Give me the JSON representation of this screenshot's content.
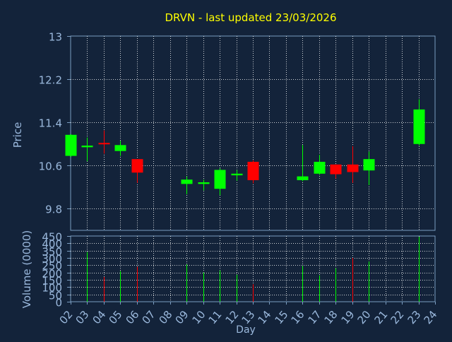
{
  "chart_data": [
    {
      "type": "candlestick",
      "title": "DRVN - last updated 23/03/2026",
      "ylabel": "Price",
      "ylim": [
        9.4,
        13.0
      ],
      "yticks": [
        "13",
        "12.2",
        "11.4",
        "10.6",
        "9.8"
      ],
      "ytick_values": [
        13.0,
        12.2,
        11.4,
        10.6,
        9.8
      ],
      "grid": true,
      "candles": [
        {
          "day": "02",
          "open": 10.78,
          "high": 11.18,
          "low": 10.76,
          "close": 11.17
        },
        {
          "day": "03",
          "open": 10.94,
          "high": 11.12,
          "low": 10.68,
          "close": 10.97
        },
        {
          "day": "04",
          "open": 11.02,
          "high": 11.25,
          "low": 10.82,
          "close": 11.01
        },
        {
          "day": "05",
          "open": 10.87,
          "high": 11.06,
          "low": 10.78,
          "close": 10.98
        },
        {
          "day": "06",
          "open": 10.72,
          "high": 10.72,
          "low": 10.28,
          "close": 10.47
        },
        {
          "day": "09",
          "open": 10.26,
          "high": 10.4,
          "low": 10.07,
          "close": 10.34
        },
        {
          "day": "10",
          "open": 10.26,
          "high": 10.34,
          "low": 10.14,
          "close": 10.29
        },
        {
          "day": "11",
          "open": 10.17,
          "high": 10.55,
          "low": 10.05,
          "close": 10.52
        },
        {
          "day": "12",
          "open": 10.42,
          "high": 10.52,
          "low": 10.32,
          "close": 10.45
        },
        {
          "day": "13",
          "open": 10.67,
          "high": 10.7,
          "low": 10.27,
          "close": 10.33
        },
        {
          "day": "16",
          "open": 10.33,
          "high": 10.98,
          "low": 10.31,
          "close": 10.4
        },
        {
          "day": "17",
          "open": 10.45,
          "high": 10.8,
          "low": 10.43,
          "close": 10.67
        },
        {
          "day": "18",
          "open": 10.62,
          "high": 10.62,
          "low": 10.36,
          "close": 10.44
        },
        {
          "day": "19",
          "open": 10.62,
          "high": 10.96,
          "low": 10.28,
          "close": 10.48
        },
        {
          "day": "20",
          "open": 10.51,
          "high": 10.86,
          "low": 10.24,
          "close": 10.72
        },
        {
          "day": "23",
          "open": 11.0,
          "high": 11.83,
          "low": 10.97,
          "close": 11.64
        }
      ],
      "colors": {
        "up": "#00ff00",
        "down": "#ff0000"
      }
    },
    {
      "type": "bar",
      "ylabel": "Volume (0000)",
      "xlabel": "Day",
      "ylim": [
        0,
        450
      ],
      "yticks": [
        "450",
        "400",
        "350",
        "300",
        "250",
        "200",
        "150",
        "100",
        "50",
        "0"
      ],
      "ytick_values": [
        450,
        400,
        350,
        300,
        250,
        200,
        150,
        100,
        50,
        0
      ],
      "categories": [
        "02",
        "03",
        "04",
        "05",
        "06",
        "07",
        "08",
        "09",
        "10",
        "11",
        "12",
        "13",
        "14",
        "15",
        "16",
        "17",
        "18",
        "19",
        "20",
        "21",
        "22",
        "23",
        "24"
      ],
      "bars": [
        {
          "day": "03",
          "value": 340,
          "direction": "up"
        },
        {
          "day": "04",
          "value": 170,
          "direction": "down"
        },
        {
          "day": "05",
          "value": 210,
          "direction": "up"
        },
        {
          "day": "06",
          "value": 240,
          "direction": "down"
        },
        {
          "day": "09",
          "value": 255,
          "direction": "up"
        },
        {
          "day": "10",
          "value": 200,
          "direction": "up"
        },
        {
          "day": "11",
          "value": 215,
          "direction": "up"
        },
        {
          "day": "12",
          "value": 185,
          "direction": "up"
        },
        {
          "day": "13",
          "value": 120,
          "direction": "down"
        },
        {
          "day": "16",
          "value": 245,
          "direction": "up"
        },
        {
          "day": "17",
          "value": 180,
          "direction": "up"
        },
        {
          "day": "18",
          "value": 230,
          "direction": "up"
        },
        {
          "day": "19",
          "value": 300,
          "direction": "down"
        },
        {
          "day": "20",
          "value": 275,
          "direction": "up"
        },
        {
          "day": "23",
          "value": 445,
          "direction": "up"
        }
      ],
      "colors": {
        "up": "#00ff00",
        "down": "#ff0000"
      }
    }
  ],
  "theme": {
    "background": "#13233a",
    "plot_background": "#13233a",
    "axis_color": "#7a9cc0",
    "grid_color": "#ffffff",
    "label_color": "#9ab8dc",
    "title_color": "#ffff00"
  }
}
